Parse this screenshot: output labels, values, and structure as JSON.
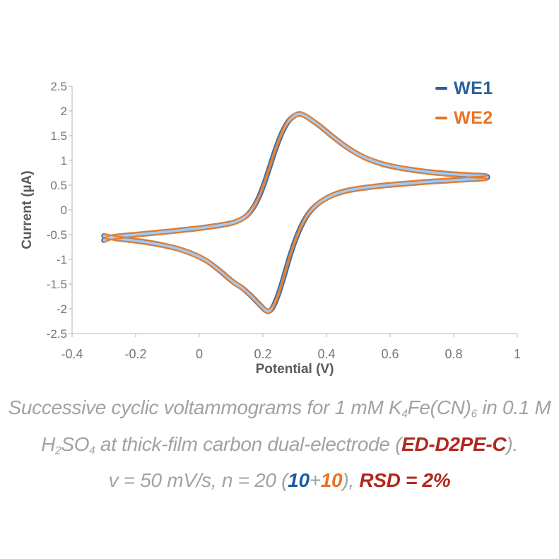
{
  "chart_data": {
    "type": "line",
    "title": "",
    "xlabel": "Potential (V)",
    "ylabel": "Current (µA)",
    "xlim": [
      -0.4,
      1.0
    ],
    "ylim": [
      -2.5,
      2.5
    ],
    "grid": false,
    "legend_position": "top-right",
    "x_ticks": [
      {
        "v": -0.4,
        "label": "-0.4"
      },
      {
        "v": -0.2,
        "label": "-0.2"
      },
      {
        "v": 0.0,
        "label": "0"
      },
      {
        "v": 0.2,
        "label": "0.2"
      },
      {
        "v": 0.4,
        "label": "0.4"
      },
      {
        "v": 0.6,
        "label": "0.6"
      },
      {
        "v": 0.8,
        "label": "0.8"
      },
      {
        "v": 1.0,
        "label": "1"
      }
    ],
    "y_ticks": [
      {
        "v": 2.5,
        "label": "2.5"
      },
      {
        "v": 2.0,
        "label": "2"
      },
      {
        "v": 1.5,
        "label": "1.5"
      },
      {
        "v": 1.0,
        "label": "1"
      },
      {
        "v": 0.5,
        "label": "0.5"
      },
      {
        "v": 0.0,
        "label": "0"
      },
      {
        "v": -0.5,
        "label": "-0.5"
      },
      {
        "v": -1.0,
        "label": "-1"
      },
      {
        "v": -1.5,
        "label": "-1.5"
      },
      {
        "v": -2.0,
        "label": "-2"
      },
      {
        "v": -2.5,
        "label": "-2.5"
      }
    ],
    "series": [
      {
        "name": "WE1",
        "color": "#2E6DB4",
        "band_color": "#A9C7E9",
        "i_scale": 1.0,
        "i_offsets": [
          0.0
        ]
      },
      {
        "name": "WE2",
        "color": "#E87D2C",
        "band_color": "#E87D2C",
        "i_scale": 1.0,
        "i_offsets": [
          -0.045,
          0.045
        ]
      }
    ],
    "anodic_peak": {
      "potential_V": 0.31,
      "current_uA": 1.94
    },
    "cathodic_peak": {
      "potential_V": 0.22,
      "current_uA": -2.05
    },
    "loop_points": [
      [
        -0.3,
        -0.615
      ],
      [
        -0.28,
        -0.56
      ],
      [
        -0.25,
        -0.53
      ],
      [
        -0.2,
        -0.5
      ],
      [
        -0.15,
        -0.47
      ],
      [
        -0.1,
        -0.44
      ],
      [
        -0.05,
        -0.405
      ],
      [
        0.0,
        -0.37
      ],
      [
        0.04,
        -0.335
      ],
      [
        0.08,
        -0.295
      ],
      [
        0.11,
        -0.25
      ],
      [
        0.14,
        -0.16
      ],
      [
        0.16,
        -0.04
      ],
      [
        0.18,
        0.16
      ],
      [
        0.2,
        0.46
      ],
      [
        0.22,
        0.84
      ],
      [
        0.24,
        1.23
      ],
      [
        0.26,
        1.56
      ],
      [
        0.28,
        1.79
      ],
      [
        0.3,
        1.905
      ],
      [
        0.315,
        1.94
      ],
      [
        0.33,
        1.91
      ],
      [
        0.35,
        1.83
      ],
      [
        0.38,
        1.69
      ],
      [
        0.41,
        1.53
      ],
      [
        0.45,
        1.33
      ],
      [
        0.49,
        1.16
      ],
      [
        0.53,
        1.03
      ],
      [
        0.58,
        0.92
      ],
      [
        0.63,
        0.85
      ],
      [
        0.68,
        0.8
      ],
      [
        0.73,
        0.76
      ],
      [
        0.79,
        0.725
      ],
      [
        0.85,
        0.7
      ],
      [
        0.9,
        0.685
      ],
      [
        0.9,
        0.64
      ],
      [
        0.85,
        0.62
      ],
      [
        0.8,
        0.6
      ],
      [
        0.75,
        0.58
      ],
      [
        0.7,
        0.558
      ],
      [
        0.65,
        0.532
      ],
      [
        0.6,
        0.505
      ],
      [
        0.55,
        0.472
      ],
      [
        0.5,
        0.43
      ],
      [
        0.46,
        0.382
      ],
      [
        0.42,
        0.3
      ],
      [
        0.39,
        0.2
      ],
      [
        0.365,
        0.08
      ],
      [
        0.345,
        -0.06
      ],
      [
        0.325,
        -0.27
      ],
      [
        0.305,
        -0.56
      ],
      [
        0.285,
        -0.93
      ],
      [
        0.265,
        -1.37
      ],
      [
        0.25,
        -1.68
      ],
      [
        0.238,
        -1.88
      ],
      [
        0.228,
        -2.0
      ],
      [
        0.218,
        -2.05
      ],
      [
        0.208,
        -2.03
      ],
      [
        0.195,
        -1.95
      ],
      [
        0.18,
        -1.85
      ],
      [
        0.16,
        -1.72
      ],
      [
        0.135,
        -1.58
      ],
      [
        0.105,
        -1.45
      ],
      [
        0.07,
        -1.26
      ],
      [
        0.03,
        -1.06
      ],
      [
        -0.01,
        -0.92
      ],
      [
        -0.06,
        -0.8
      ],
      [
        -0.11,
        -0.72
      ],
      [
        -0.16,
        -0.66
      ],
      [
        -0.21,
        -0.615
      ],
      [
        -0.26,
        -0.578
      ],
      [
        -0.3,
        -0.525
      ]
    ]
  },
  "legend": {
    "entries": [
      {
        "label": "WE1",
        "color": "#2A5F9E"
      },
      {
        "label": "WE2",
        "color": "#E87425"
      }
    ]
  },
  "caption": {
    "text_color": "#A2A2A2",
    "palette": {
      "red": "#B1281E",
      "blue": "#1C5BA6",
      "orange": "#E87425"
    },
    "lines": [
      {
        "segments": [
          {
            "t": "Successive cyclic voltammograms for 1 mM K"
          },
          {
            "t": "4",
            "sub": true
          },
          {
            "t": "Fe(CN)"
          },
          {
            "t": "6",
            "sub": true
          },
          {
            "t": " in 0.1 M"
          }
        ]
      },
      {
        "segments": [
          {
            "t": "H"
          },
          {
            "t": "2",
            "sub": true
          },
          {
            "t": "SO"
          },
          {
            "t": "4",
            "sub": true
          },
          {
            "t": " at thick-film carbon dual-electrode ("
          },
          {
            "t": "ED-D2PE-C",
            "c": "red"
          },
          {
            "t": ")."
          }
        ]
      },
      {
        "segments": [
          {
            "t": "v = 50 mV/s, n = 20 ("
          },
          {
            "t": "10",
            "c": "blue"
          },
          {
            "t": "+"
          },
          {
            "t": "10",
            "c": "orange"
          },
          {
            "t": "), "
          },
          {
            "t": "RSD = 2%",
            "c": "red"
          }
        ]
      }
    ]
  },
  "axis_style": {
    "line_color": "#C6C6C6"
  }
}
